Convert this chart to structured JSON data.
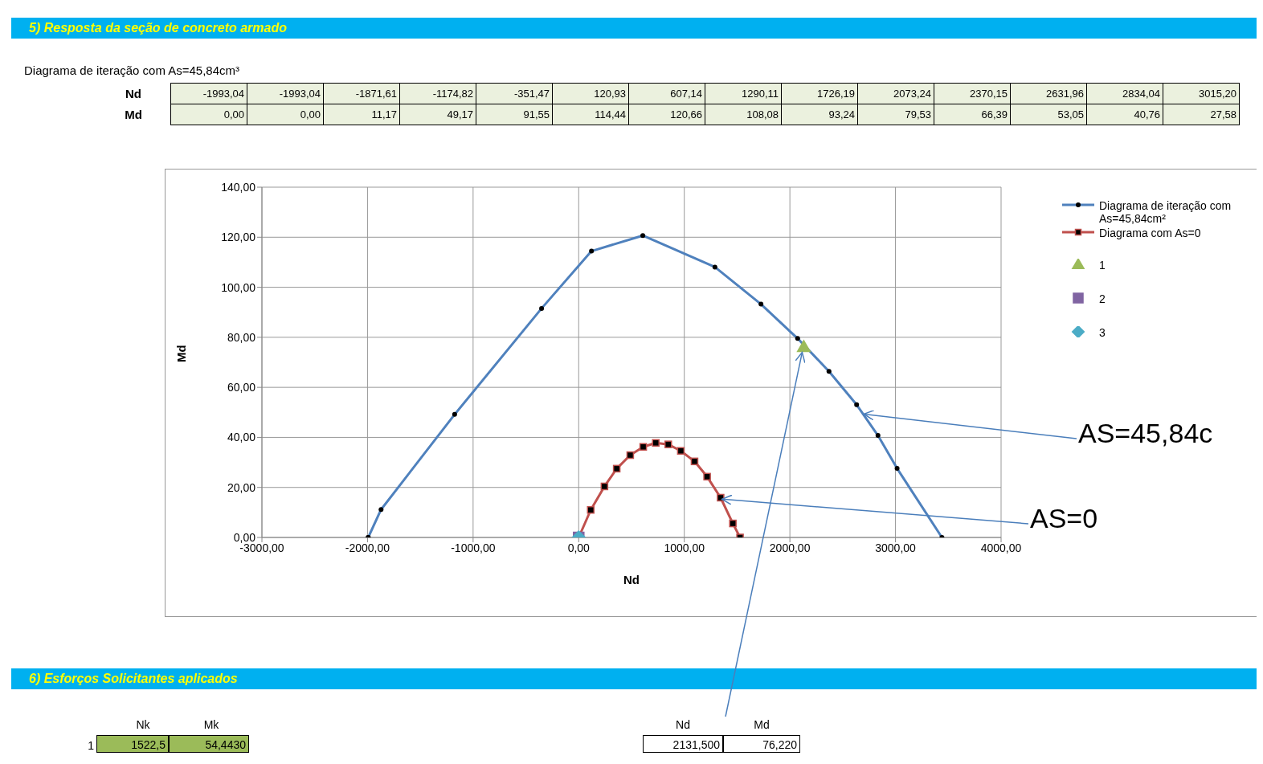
{
  "chart_data": {
    "type": "line",
    "title": "5) Resposta da seção de concreto armado",
    "subtitle": "Diagrama de iteração com As=45,84cm³",
    "xlabel": "Nd",
    "ylabel": "Md",
    "xlim": [
      -3000,
      4000
    ],
    "xticks": [
      {
        "value": -3000,
        "label": "-3000,00"
      },
      {
        "value": -2000,
        "label": "-2000,00"
      },
      {
        "value": -1000,
        "label": "-1000,00"
      },
      {
        "value": 0,
        "label": "0,00"
      },
      {
        "value": 1000,
        "label": "1000,00"
      },
      {
        "value": 2000,
        "label": "2000,00"
      },
      {
        "value": 3000,
        "label": "3000,00"
      },
      {
        "value": 4000,
        "label": "4000,00"
      }
    ],
    "ylim": [
      0,
      140
    ],
    "yticks": [
      {
        "value": 0,
        "label": "0,00"
      },
      {
        "value": 20,
        "label": "20,00"
      },
      {
        "value": 40,
        "label": "40,00"
      },
      {
        "value": 60,
        "label": "60,00"
      },
      {
        "value": 80,
        "label": "80,00"
      },
      {
        "value": 100,
        "label": "100,00"
      },
      {
        "value": 120,
        "label": "120,00"
      },
      {
        "value": 140,
        "label": "140,00"
      }
    ],
    "grid": true,
    "legend": "right",
    "series": [
      {
        "name": "Diagrama de iteração com As=45,84cm²",
        "type": "line",
        "color": "#4f81bd",
        "marker": "circle",
        "x": [
          -1993.04,
          -1993.04,
          -1871.61,
          -1174.82,
          -351.47,
          120.93,
          607.14,
          1290.11,
          1726.19,
          2073.24,
          2370.15,
          2631.96,
          2834.04,
          3015.2,
          3440
        ],
        "values": [
          0,
          0,
          11.17,
          49.17,
          91.55,
          114.44,
          120.66,
          108.08,
          93.24,
          79.53,
          66.39,
          53.05,
          40.76,
          27.58,
          0
        ]
      },
      {
        "name": "Diagrama com As=0",
        "type": "line",
        "color": "#c0504d",
        "marker": "square",
        "x": [
          0,
          114,
          244,
          360,
          488,
          611,
          730,
          848,
          967,
          1097,
          1216,
          1344,
          1460,
          1528
        ],
        "values": [
          0,
          11.0,
          20.4,
          27.5,
          32.9,
          36.2,
          37.8,
          37.2,
          34.6,
          30.4,
          24.3,
          15.9,
          5.6,
          0
        ]
      },
      {
        "name": "1",
        "type": "scatter",
        "color": "#9bbb59",
        "marker": "triangle",
        "x": [
          2131.5
        ],
        "values": [
          76.22
        ]
      },
      {
        "name": "2",
        "type": "scatter",
        "color": "#8064a2",
        "marker": "square",
        "x": [
          0
        ],
        "values": [
          0
        ]
      },
      {
        "name": "3",
        "type": "scatter",
        "color": "#4bacc6",
        "marker": "diamond",
        "x": [
          0
        ],
        "values": [
          0
        ]
      }
    ],
    "annotations": [
      {
        "text": "AS=45,84c",
        "x": 2709,
        "y": 49
      },
      {
        "text": "AS=0",
        "x": 1365,
        "y": 15
      },
      "6) Esforços Solicitantes aplicados",
      "Nk",
      "Mk",
      "1",
      "1522,5",
      "54,4430",
      "Nd",
      "Md",
      "2131,500",
      "76,220",
      "Nd",
      "-1993,04",
      "-1993,04",
      "-1871,61",
      "-1174,82",
      "-351,47",
      "120,93",
      "607,14",
      "1290,11",
      "1726,19",
      "2073,24",
      "2370,15",
      "2631,96",
      "2834,04",
      "3015,20",
      "Md",
      "0,00",
      "0,00",
      "11,17",
      "49,17",
      "91,55",
      "114,44",
      "120,66",
      "108,08",
      "93,24",
      "79,53",
      "66,39",
      "53,05",
      "40,76",
      "27,58"
    ]
  }
}
